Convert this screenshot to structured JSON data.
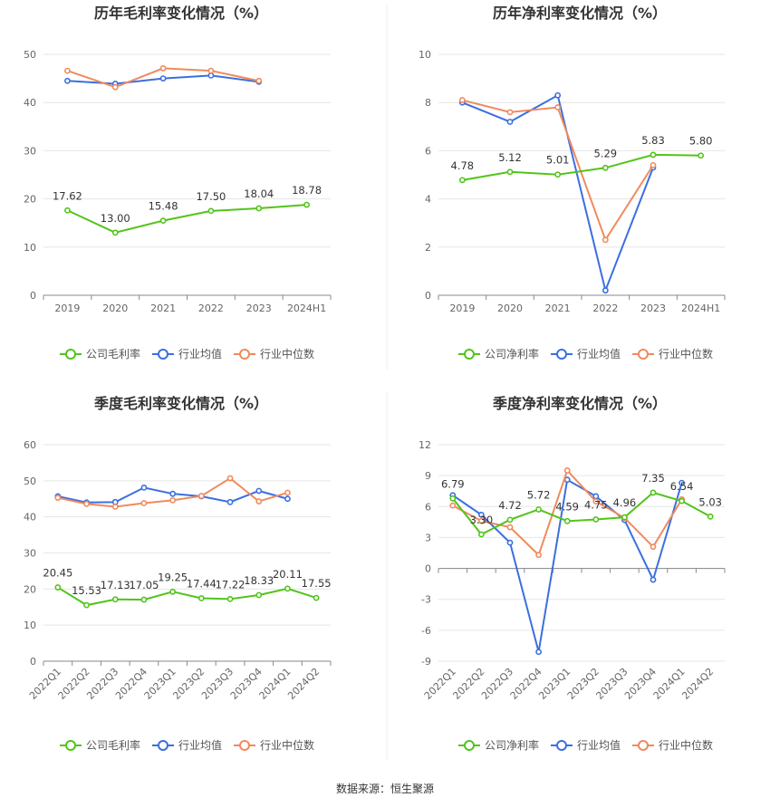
{
  "colors": {
    "company": "#52c41a",
    "industry_avg": "#3a6fe0",
    "industry_median": "#f08a5d",
    "grid": "#e6e6e6",
    "axis": "#888888",
    "divider": "#eeeeee"
  },
  "source_text": "数据来源：恒生聚源",
  "chart_data": [
    {
      "id": "annual_gross",
      "type": "line",
      "title": "历年毛利率变化情况（%）",
      "categories": [
        "2019",
        "2020",
        "2021",
        "2022",
        "2023",
        "2024H1"
      ],
      "ylim": [
        0,
        50
      ],
      "yticks": [
        0,
        10,
        20,
        30,
        40,
        50
      ],
      "grid": true,
      "legend_position": "bottom",
      "series": [
        {
          "name": "公司毛利率",
          "key": "company",
          "values": [
            17.62,
            13.0,
            15.48,
            17.5,
            18.04,
            18.78
          ],
          "labels": [
            "17.62",
            "13.00",
            "15.48",
            "17.50",
            "18.04",
            "18.78"
          ]
        },
        {
          "name": "行业均值",
          "key": "industry_avg",
          "values": [
            44.5,
            43.9,
            45.0,
            45.6,
            44.3,
            null
          ]
        },
        {
          "name": "行业中位数",
          "key": "industry_median",
          "values": [
            46.6,
            43.2,
            47.1,
            46.6,
            44.5,
            null
          ]
        }
      ]
    },
    {
      "id": "annual_net",
      "type": "line",
      "title": "历年净利率变化情况（%）",
      "categories": [
        "2019",
        "2020",
        "2021",
        "2022",
        "2023",
        "2024H1"
      ],
      "ylim": [
        0,
        10
      ],
      "yticks": [
        0,
        2,
        4,
        6,
        8,
        10
      ],
      "grid": true,
      "legend_position": "bottom",
      "series": [
        {
          "name": "公司净利率",
          "key": "company",
          "values": [
            4.78,
            5.12,
            5.01,
            5.29,
            5.83,
            5.8
          ],
          "labels": [
            "4.78",
            "5.12",
            "5.01",
            "5.29",
            "5.83",
            "5.80"
          ]
        },
        {
          "name": "行业均值",
          "key": "industry_avg",
          "values": [
            8.0,
            7.2,
            8.3,
            0.2,
            5.3,
            null
          ]
        },
        {
          "name": "行业中位数",
          "key": "industry_median",
          "values": [
            8.1,
            7.6,
            7.8,
            2.3,
            5.4,
            null
          ]
        }
      ]
    },
    {
      "id": "quarterly_gross",
      "type": "line",
      "title": "季度毛利率变化情况（%）",
      "categories": [
        "2022Q1",
        "2022Q2",
        "2022Q3",
        "2022Q4",
        "2023Q1",
        "2023Q2",
        "2023Q3",
        "2023Q4",
        "2024Q1",
        "2024Q2"
      ],
      "ylim": [
        0,
        60
      ],
      "yticks": [
        0,
        10,
        20,
        30,
        40,
        50,
        60
      ],
      "grid": true,
      "legend_position": "bottom",
      "series": [
        {
          "name": "公司毛利率",
          "key": "company",
          "values": [
            20.45,
            15.53,
            17.13,
            17.05,
            19.25,
            17.44,
            17.22,
            18.33,
            20.11,
            17.55
          ],
          "labels": [
            "20.45",
            "15.53",
            "17.13",
            "17.05",
            "19.25",
            "17.44",
            "17.22",
            "18.33",
            "20.11",
            "17.55"
          ]
        },
        {
          "name": "行业均值",
          "key": "industry_avg",
          "values": [
            45.7,
            44.0,
            44.1,
            48.1,
            46.4,
            45.7,
            44.1,
            47.2,
            45.0,
            null
          ]
        },
        {
          "name": "行业中位数",
          "key": "industry_median",
          "values": [
            45.3,
            43.6,
            42.8,
            43.8,
            44.6,
            45.8,
            50.7,
            44.3,
            46.7,
            null
          ]
        }
      ]
    },
    {
      "id": "quarterly_net",
      "type": "line",
      "title": "季度净利率变化情况（%）",
      "categories": [
        "2022Q1",
        "2022Q2",
        "2022Q3",
        "2022Q4",
        "2023Q1",
        "2023Q2",
        "2023Q3",
        "2023Q4",
        "2024Q1",
        "2024Q2"
      ],
      "ylim": [
        -9,
        12
      ],
      "yticks": [
        -9,
        -6,
        -3,
        0,
        3,
        6,
        9,
        12
      ],
      "grid": true,
      "legend_position": "bottom",
      "series": [
        {
          "name": "公司净利率",
          "key": "company",
          "values": [
            6.79,
            3.3,
            4.72,
            5.72,
            4.59,
            4.75,
            4.96,
            7.35,
            6.54,
            5.03
          ],
          "labels": [
            "6.79",
            "3.30",
            "4.72",
            "5.72",
            "4.59",
            "4.75",
            "4.96",
            "7.35",
            "6.54",
            "5.03"
          ]
        },
        {
          "name": "行业均值",
          "key": "industry_avg",
          "values": [
            7.1,
            5.2,
            2.5,
            -8.1,
            8.6,
            7.0,
            4.7,
            -1.1,
            8.3,
            null
          ]
        },
        {
          "name": "行业中位数",
          "key": "industry_median",
          "values": [
            6.1,
            4.6,
            4.0,
            1.3,
            9.5,
            6.5,
            4.9,
            2.1,
            6.7,
            null
          ]
        }
      ]
    }
  ]
}
